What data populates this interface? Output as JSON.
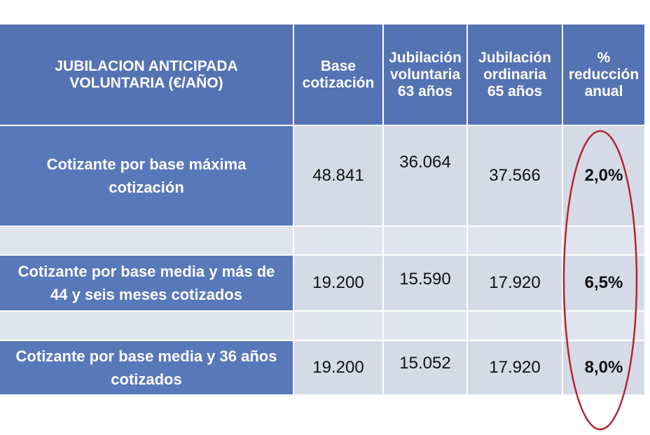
{
  "table": {
    "header": [
      [
        "JUBILACION ANTICIPADA",
        "VOLUNTARIA (€/AÑO)"
      ],
      [
        "Base",
        "cotización"
      ],
      [
        "Jubilación",
        "voluntaria",
        "63 años"
      ],
      [
        "Jubilación",
        "ordinaria",
        "65 años"
      ],
      [
        "%",
        "reducción",
        "anual"
      ]
    ],
    "rows": [
      [
        [
          "Cotizante por base máxima",
          "cotización"
        ],
        "48.841",
        "36.064",
        "37.566",
        "2,0%"
      ],
      [
        [
          "Cotizante por base media y más de",
          "44 y seis meses cotizados"
        ],
        "19.200",
        "15.590",
        "17.920",
        "6,5%"
      ],
      [
        [
          "Cotizante por base media y 36 años",
          "cotizados"
        ],
        "19.200",
        "15.052",
        "17.920",
        "8,0%"
      ]
    ]
  }
}
